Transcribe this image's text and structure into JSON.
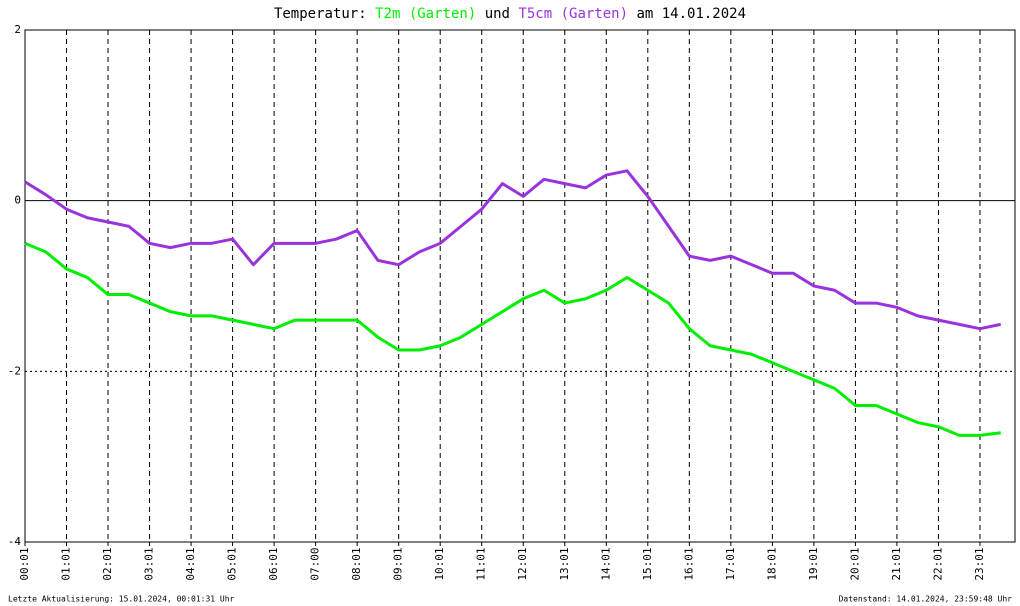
{
  "chart_data": {
    "type": "line",
    "title_prefix": "Temperatur:",
    "title_conjunction": "und",
    "title_suffix": "am 14.01.2024",
    "footer_left": "Letzte Aktualisierung: 15.01.2024, 00:01:31 Uhr",
    "footer_right": "Datenstand: 14.01.2024, 23:59:48 Uhr",
    "categories": [
      "00:01",
      null,
      "01:01",
      null,
      "02:01",
      null,
      "03:01",
      null,
      "04:01",
      null,
      "05:01",
      null,
      "06:01",
      null,
      "07:00",
      null,
      "08:01",
      null,
      "09:01",
      null,
      "10:01",
      null,
      "11:01",
      null,
      "12:01",
      null,
      "13:01",
      null,
      "14:01",
      null,
      "15:01",
      null,
      "16:01",
      null,
      "17:01",
      null,
      "18:01",
      null,
      "19:01",
      null,
      "20:01",
      null,
      "21:01",
      null,
      "22:01",
      null,
      "23:01",
      null
    ],
    "series": [
      {
        "name": "T2m (Garten)",
        "color": "#00ee00",
        "values": [
          -0.5,
          -0.6,
          -0.8,
          -0.9,
          -1.1,
          -1.1,
          -1.2,
          -1.3,
          -1.35,
          -1.35,
          -1.4,
          -1.45,
          -1.5,
          -1.4,
          -1.4,
          -1.4,
          -1.4,
          -1.6,
          -1.75,
          -1.75,
          -1.7,
          -1.6,
          -1.45,
          -1.3,
          -1.15,
          -1.05,
          -1.2,
          -1.15,
          -1.05,
          -0.9,
          -1.05,
          -1.2,
          -1.5,
          -1.7,
          -1.75,
          -1.8,
          -1.9,
          -2.0,
          -2.1,
          -2.2,
          -2.4,
          -2.4,
          -2.5,
          -2.6,
          -2.65,
          -2.75,
          -2.75,
          -2.72
        ]
      },
      {
        "name": "T5cm (Garten)",
        "color": "#9933dd",
        "values": [
          0.22,
          0.07,
          -0.1,
          -0.2,
          -0.25,
          -0.3,
          -0.5,
          -0.55,
          -0.5,
          -0.5,
          -0.45,
          -0.75,
          -0.5,
          -0.5,
          -0.5,
          -0.45,
          -0.35,
          -0.7,
          -0.75,
          -0.6,
          -0.5,
          -0.3,
          -0.1,
          0.2,
          0.05,
          0.25,
          0.2,
          0.15,
          0.3,
          0.35,
          0.05,
          -0.3,
          -0.65,
          -0.7,
          -0.65,
          -0.75,
          -0.85,
          -0.85,
          -1.0,
          -1.05,
          -1.2,
          -1.2,
          -1.25,
          -1.35,
          -1.4,
          -1.45,
          -1.5,
          -1.45
        ]
      }
    ],
    "ylim": [
      -4,
      2
    ],
    "yticks": [
      -4,
      -2,
      0,
      2
    ],
    "grid": true
  }
}
